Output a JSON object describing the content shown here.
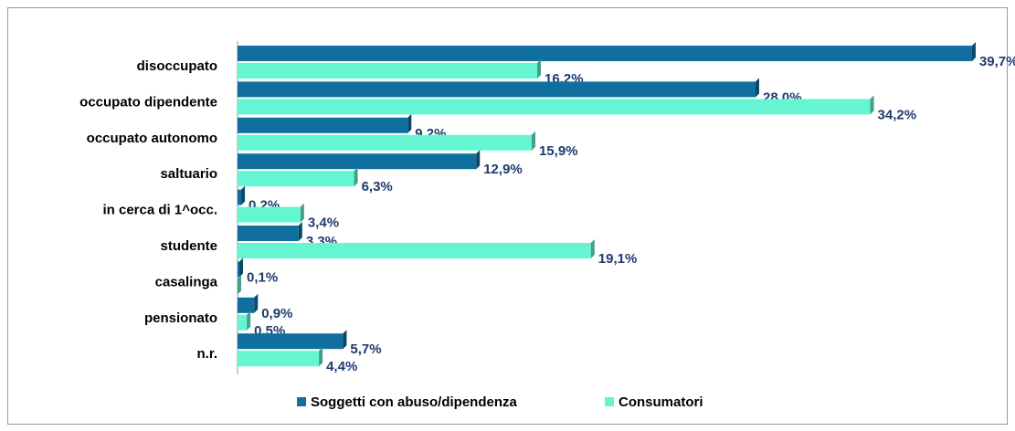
{
  "chart_data": {
    "type": "bar",
    "orientation": "horizontal",
    "categories": [
      "disoccupato",
      "occupato dipendente",
      "occupato autonomo",
      "saltuario",
      "in cerca di 1^occ.",
      "studente",
      "casalinga",
      "pensionato",
      "n.r."
    ],
    "series": [
      {
        "name": "Soggetti con abuso/dipendenza",
        "color": "#0f6f9e",
        "values": [
          39.7,
          28.0,
          9.2,
          12.9,
          0.2,
          3.3,
          0.1,
          0.9,
          5.7
        ],
        "value_labels": [
          "39,7%",
          "28.0%",
          "9,2%",
          "12,9%",
          "0,2%",
          "3,3%",
          "0,1%",
          "0,9%",
          "5,7%"
        ]
      },
      {
        "name": "Consumatori",
        "color": "#66f5d2",
        "values": [
          16.2,
          34.2,
          15.9,
          6.3,
          3.4,
          19.1,
          0,
          0.5,
          4.4
        ],
        "value_labels": [
          "16,2%",
          "34,2%",
          "15,9%",
          "6,3%",
          "3,4%",
          "19,1%",
          null,
          "0,5%",
          "4,4%"
        ]
      }
    ],
    "xlim": [
      0,
      40
    ],
    "legend": "bottom"
  }
}
